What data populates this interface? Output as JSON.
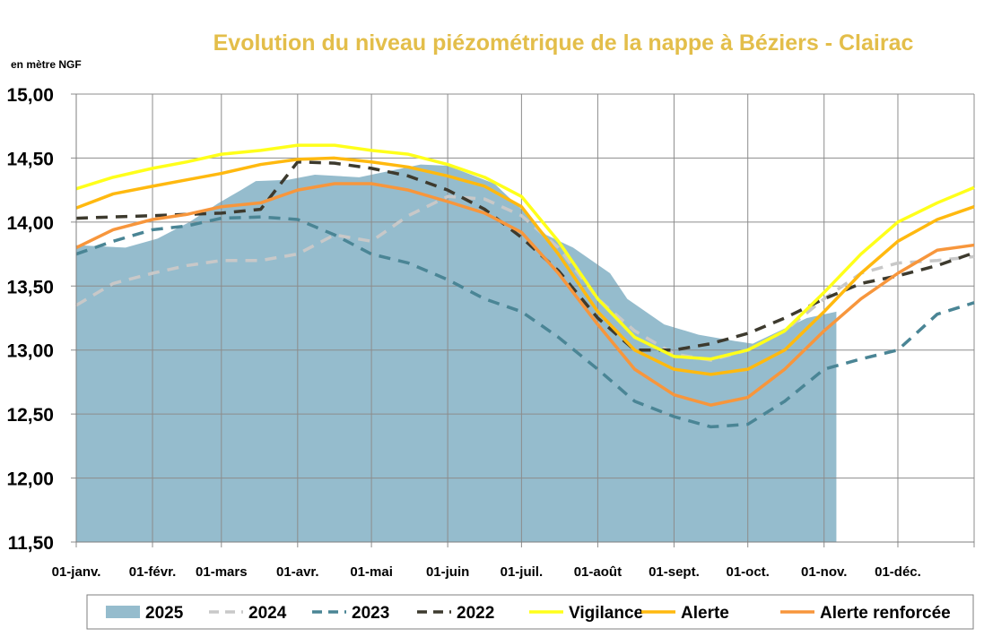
{
  "chart_data": {
    "type": "line",
    "title": "Evolution du niveau piézométrique de la nappe à Béziers  - Clairac",
    "ylabel": "en mètre NGF",
    "ylim": [
      11.5,
      15.0
    ],
    "yticks": [
      "11,50",
      "12,00",
      "12,50",
      "13,00",
      "13,50",
      "14,00",
      "14,50",
      "15,00"
    ],
    "ytick_values": [
      11.5,
      12.0,
      12.5,
      13.0,
      13.5,
      14.0,
      14.5,
      15.0
    ],
    "xlim_days": [
      0,
      365
    ],
    "xticks": [
      "01-janv.",
      "01-févr.",
      "01-mars",
      "01-avr.",
      "01-mai",
      "01-juin",
      "01-juil.",
      "01-août",
      "01-sept.",
      "01-oct.",
      "01-nov.",
      "01-déc."
    ],
    "xtick_days": [
      0,
      31,
      59,
      90,
      120,
      151,
      181,
      212,
      243,
      273,
      304,
      334,
      365
    ],
    "grid": true,
    "legend_position": "bottom",
    "x_days": [
      0,
      15,
      31,
      45,
      59,
      75,
      90,
      105,
      120,
      135,
      151,
      166,
      181,
      196,
      212,
      227,
      243,
      258,
      273,
      288,
      304,
      319,
      334,
      350,
      365
    ],
    "area": {
      "name": "2025",
      "color": "#95BCCD",
      "x_days": [
        0,
        20,
        33,
        46,
        58,
        67,
        73,
        86,
        97,
        115,
        140,
        151,
        170,
        181,
        191,
        202,
        217,
        224,
        239,
        253,
        268,
        275,
        286,
        297,
        309
      ],
      "values": [
        13.82,
        13.8,
        13.87,
        14.0,
        14.15,
        14.25,
        14.32,
        14.33,
        14.37,
        14.35,
        14.45,
        14.44,
        14.3,
        14.1,
        13.9,
        13.8,
        13.6,
        13.4,
        13.2,
        13.12,
        13.07,
        13.05,
        13.15,
        13.25,
        13.3
      ]
    },
    "series": [
      {
        "name": "2024",
        "color": "#C8C8C8",
        "dash": true,
        "values": [
          13.35,
          13.52,
          13.6,
          13.66,
          13.7,
          13.7,
          13.75,
          13.9,
          13.85,
          14.05,
          14.2,
          14.18,
          14.05,
          13.8,
          13.4,
          13.15,
          12.97,
          12.92,
          13.0,
          13.15,
          13.4,
          13.6,
          13.68,
          13.7,
          13.73
        ]
      },
      {
        "name": "2023",
        "color": "#4A8595",
        "dash": true,
        "values": [
          13.75,
          13.85,
          13.94,
          13.97,
          14.03,
          14.04,
          14.02,
          13.9,
          13.75,
          13.68,
          13.55,
          13.4,
          13.3,
          13.1,
          12.85,
          12.6,
          12.48,
          12.4,
          12.42,
          12.6,
          12.85,
          12.93,
          13.0,
          13.28,
          13.37
        ]
      },
      {
        "name": "2022",
        "color": "#3D3A2E",
        "dash": true,
        "values": [
          14.03,
          14.04,
          14.05,
          14.06,
          14.07,
          14.1,
          14.47,
          14.46,
          14.42,
          14.36,
          14.25,
          14.1,
          13.88,
          13.62,
          13.25,
          13.0,
          13.0,
          13.05,
          13.13,
          13.25,
          13.4,
          13.52,
          13.58,
          13.66,
          13.76
        ]
      },
      {
        "name": "Vigilance",
        "color": "#FFFF1A",
        "dash": false,
        "values": [
          14.26,
          14.35,
          14.42,
          14.47,
          14.53,
          14.56,
          14.6,
          14.6,
          14.56,
          14.53,
          14.45,
          14.35,
          14.2,
          13.85,
          13.4,
          13.1,
          12.95,
          12.93,
          13.0,
          13.15,
          13.45,
          13.75,
          14.0,
          14.15,
          14.27
        ]
      },
      {
        "name": "Alerte",
        "color": "#FFB90F",
        "dash": false,
        "values": [
          14.11,
          14.22,
          14.28,
          14.33,
          14.38,
          14.45,
          14.49,
          14.5,
          14.47,
          14.43,
          14.36,
          14.28,
          14.12,
          13.75,
          13.3,
          13.0,
          12.85,
          12.81,
          12.85,
          13.0,
          13.3,
          13.6,
          13.85,
          14.02,
          14.12
        ]
      },
      {
        "name": "Alerte renforcée",
        "color": "#F7963C",
        "dash": false,
        "values": [
          13.8,
          13.94,
          14.02,
          14.06,
          14.12,
          14.15,
          14.25,
          14.3,
          14.3,
          14.25,
          14.16,
          14.07,
          13.92,
          13.6,
          13.2,
          12.85,
          12.65,
          12.57,
          12.63,
          12.85,
          13.15,
          13.4,
          13.6,
          13.78,
          13.82
        ]
      }
    ],
    "title_color": "#E3BE4A"
  }
}
